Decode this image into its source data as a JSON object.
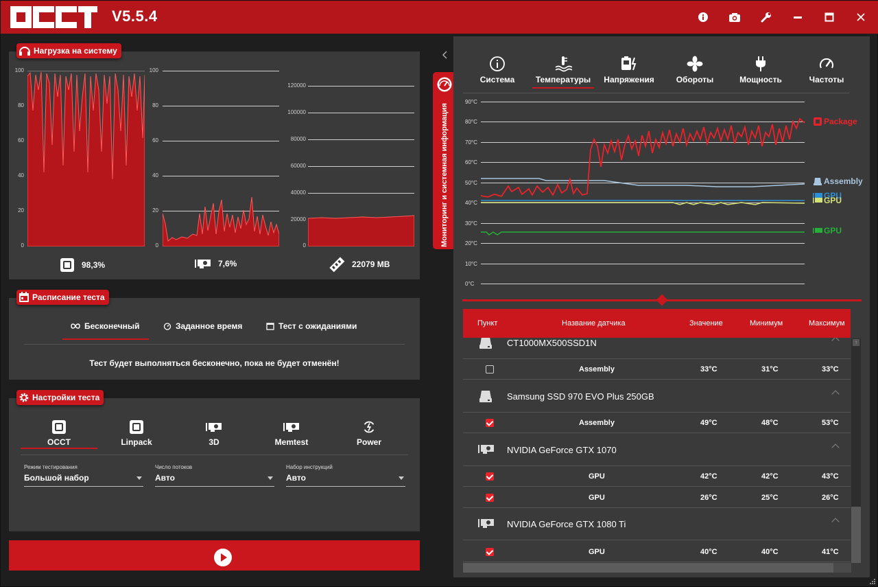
{
  "app": {
    "version": "V5.5.4"
  },
  "titlebar": {
    "icons": [
      "info-icon",
      "camera-icon",
      "wrench-icon",
      "minimize-icon",
      "maximize-icon",
      "close-icon"
    ]
  },
  "load_panel": {
    "title": "Нагрузка на систему",
    "cpu": {
      "axis": [
        "100",
        "80",
        "60",
        "40",
        "20",
        "0"
      ],
      "value": "98,3%"
    },
    "gpu": {
      "axis": [
        "100",
        "80",
        "60",
        "40",
        "20",
        "0"
      ],
      "value": "7,6%"
    },
    "mem": {
      "axis": [
        "120000",
        "100000",
        "80000",
        "60000",
        "40000",
        "20000",
        "0"
      ],
      "value": "22079 MB"
    }
  },
  "schedule_panel": {
    "title": "Расписание теста",
    "tabs": [
      "Бесконечный",
      "Заданное время",
      "Тест с ожиданиями"
    ],
    "description": "Тест будет выполняться бесконечно, пока не будет отменён!"
  },
  "settings_panel": {
    "title": "Настройки теста",
    "modes": [
      "OCCT",
      "Linpack",
      "3D",
      "Memtest",
      "Power"
    ],
    "fields": [
      {
        "label": "Режим тестирования",
        "value": "Большой набор"
      },
      {
        "label": "Число потоков",
        "value": "Авто"
      },
      {
        "label": "Набор инструкций",
        "value": "Авто"
      }
    ]
  },
  "monitor": {
    "side_tab": "Мониторинг и системная информация",
    "tabs": [
      "Система",
      "Температуры",
      "Напряжения",
      "Обороты",
      "Мощность",
      "Частоты"
    ],
    "active_tab": "Температуры",
    "axis": [
      "90°C",
      "80°C",
      "70°C",
      "60°C",
      "50°C",
      "40°C",
      "30°C",
      "20°C",
      "10°C",
      "0°C"
    ],
    "legend": [
      "Package",
      "Assembly",
      "GPU",
      "GPU",
      "GPU"
    ],
    "colors": {
      "package": "#e8242a",
      "assembly": "#a8c6df",
      "gpu_blue": "#2d8fd6",
      "gpu_yellow": "#d4e078",
      "gpu_green": "#25b03a"
    }
  },
  "sensor_table": {
    "headers": [
      "Пункт",
      "Название датчика",
      "Значение",
      "Минимум",
      "Максимум"
    ],
    "devices": [
      {
        "name": "CT1000MX500SSD1N",
        "sensors": [
          {
            "name": "Assembly",
            "value": "33°C",
            "min": "31°C",
            "max": "33°C"
          }
        ]
      },
      {
        "name": "Samsung SSD 970 EVO Plus 250GB",
        "sensors": [
          {
            "name": "Assembly",
            "value": "49°C",
            "min": "48°C",
            "max": "53°C"
          }
        ]
      },
      {
        "name": "NVIDIA GeForce GTX 1070",
        "sensors": [
          {
            "name": "GPU",
            "value": "42°C",
            "min": "42°C",
            "max": "43°C"
          },
          {
            "name": "GPU",
            "value": "26°C",
            "min": "25°C",
            "max": "26°C"
          }
        ]
      },
      {
        "name": "NVIDIA GeForce GTX 1080 Ti",
        "sensors": [
          {
            "name": "GPU",
            "value": "40°C",
            "min": "40°C",
            "max": "41°C"
          }
        ]
      }
    ]
  }
}
